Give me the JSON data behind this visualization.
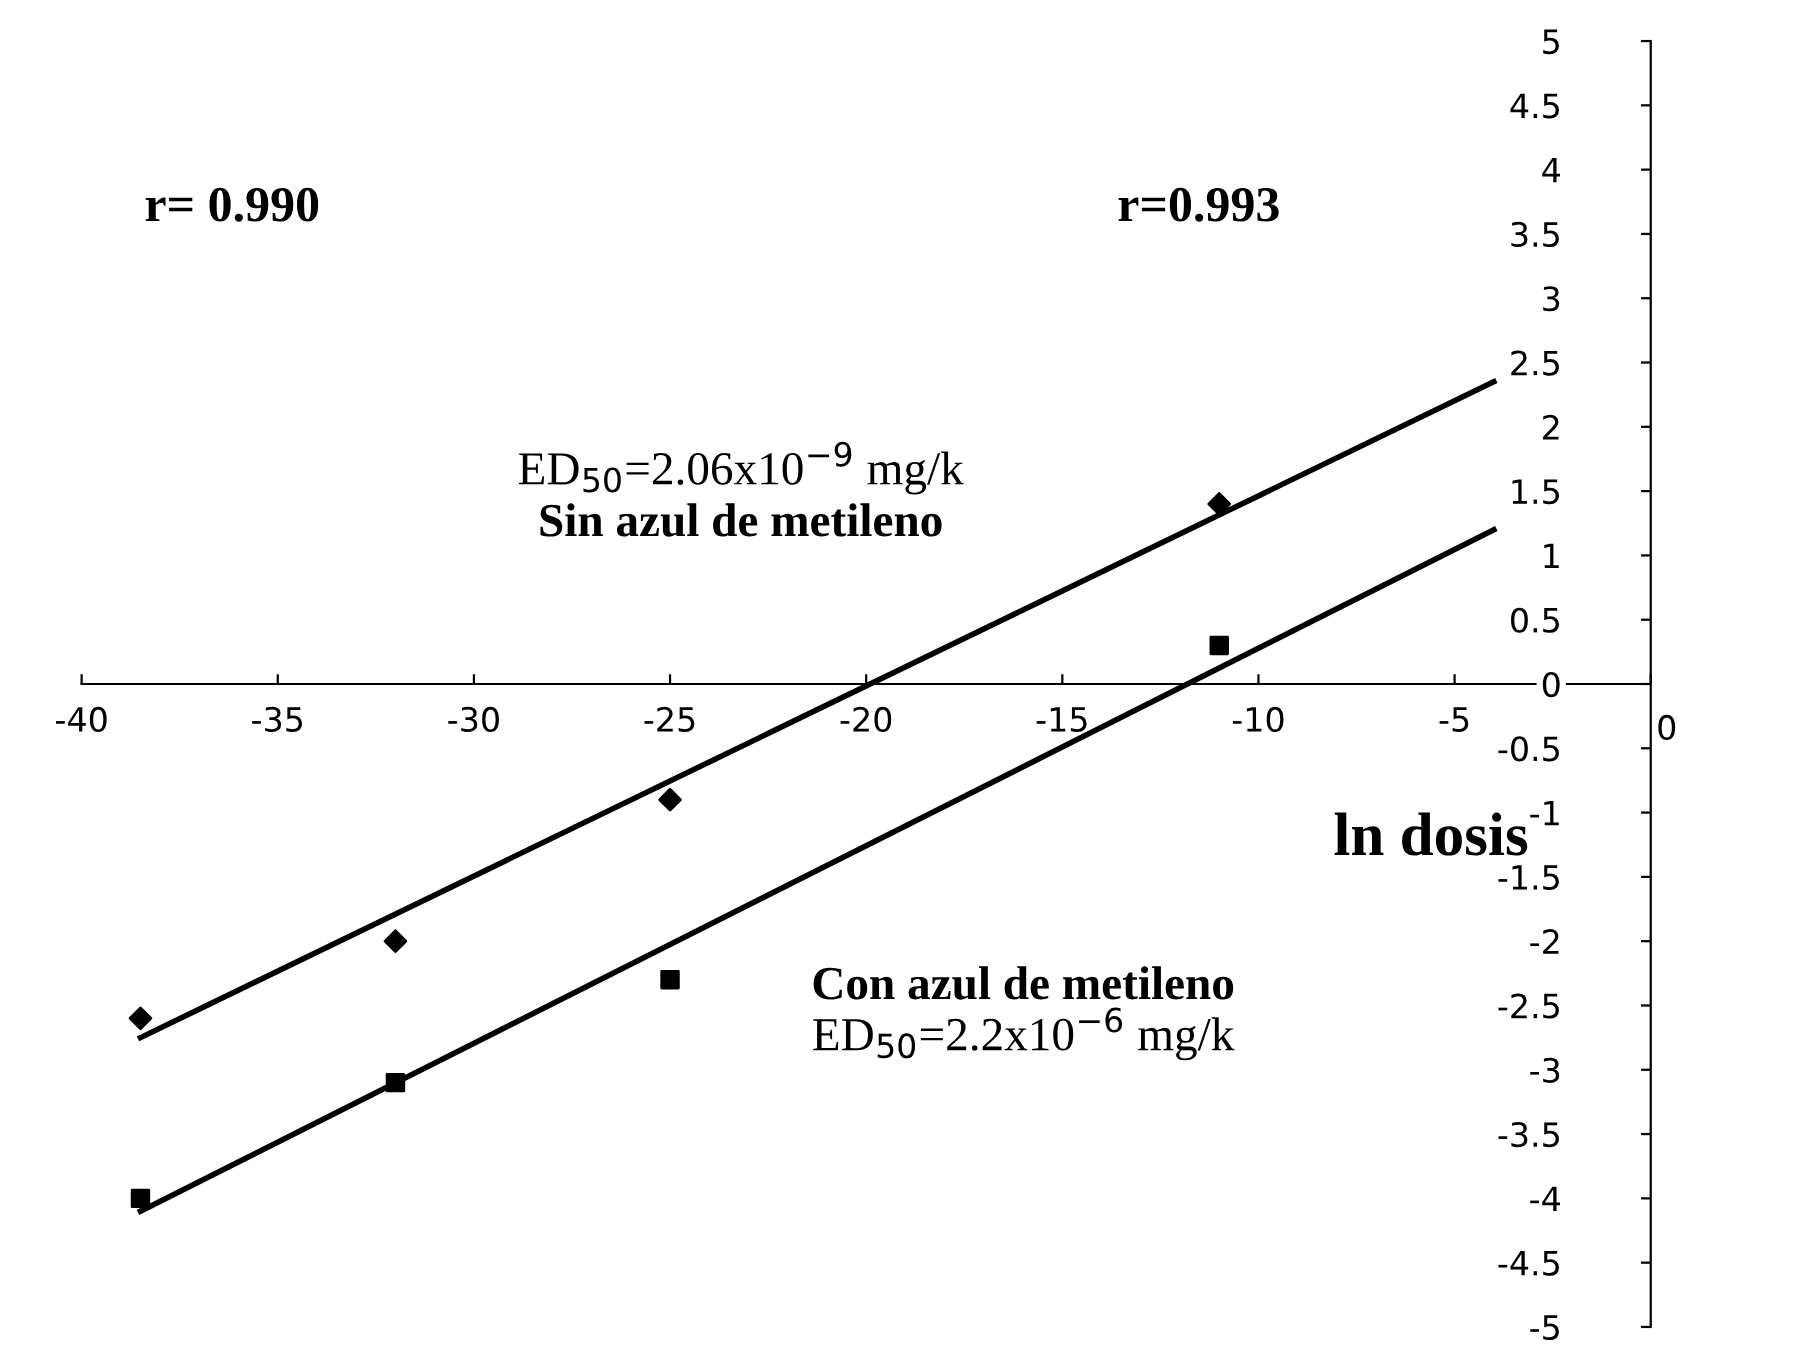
{
  "chart_data": {
    "type": "scatter",
    "xlabel": "ln dosis",
    "xlim": [
      -40,
      0
    ],
    "xticks": [
      -40,
      -35,
      -30,
      -25,
      -20,
      -15,
      -10,
      -5,
      0
    ],
    "ylim": [
      -5,
      5
    ],
    "yticks": [
      -5,
      -4.5,
      -4,
      -3.5,
      -3,
      -2.5,
      -2,
      -1.5,
      -1,
      -0.5,
      0,
      0.5,
      1,
      1.5,
      2,
      2.5,
      3,
      3.5,
      4,
      4.5,
      5
    ],
    "grid": false,
    "legend": false,
    "series": [
      {
        "marker": "diamond",
        "color": "#000000",
        "x": [
          -38.5,
          -32,
          -25,
          -11
        ],
        "values": [
          -2.6,
          -2.0,
          -0.9,
          1.4
        ]
      },
      {
        "marker": "square",
        "color": "#000000",
        "x": [
          -38.5,
          -32,
          -25,
          -11
        ],
        "values": [
          -4.0,
          -3.1,
          -2.3,
          0.3
        ]
      },
      {
        "type": "line",
        "color": "#000000",
        "x": [
          -38.5,
          -4
        ],
        "values": [
          -2.75,
          2.35
        ]
      },
      {
        "type": "line",
        "color": "#000000",
        "x": [
          -38.5,
          -4
        ],
        "values": [
          -4.1,
          1.2
        ]
      }
    ],
    "annotations": [
      "r= 0.990",
      "r=0.993",
      "ED$_{50}$=2.06x10$^{−9}$ mg/k",
      "Sin azul de metileno",
      "Con azul de metileno",
      "ED$_{50}$=2.2x10$^{−6}$ mg/k"
    ]
  }
}
